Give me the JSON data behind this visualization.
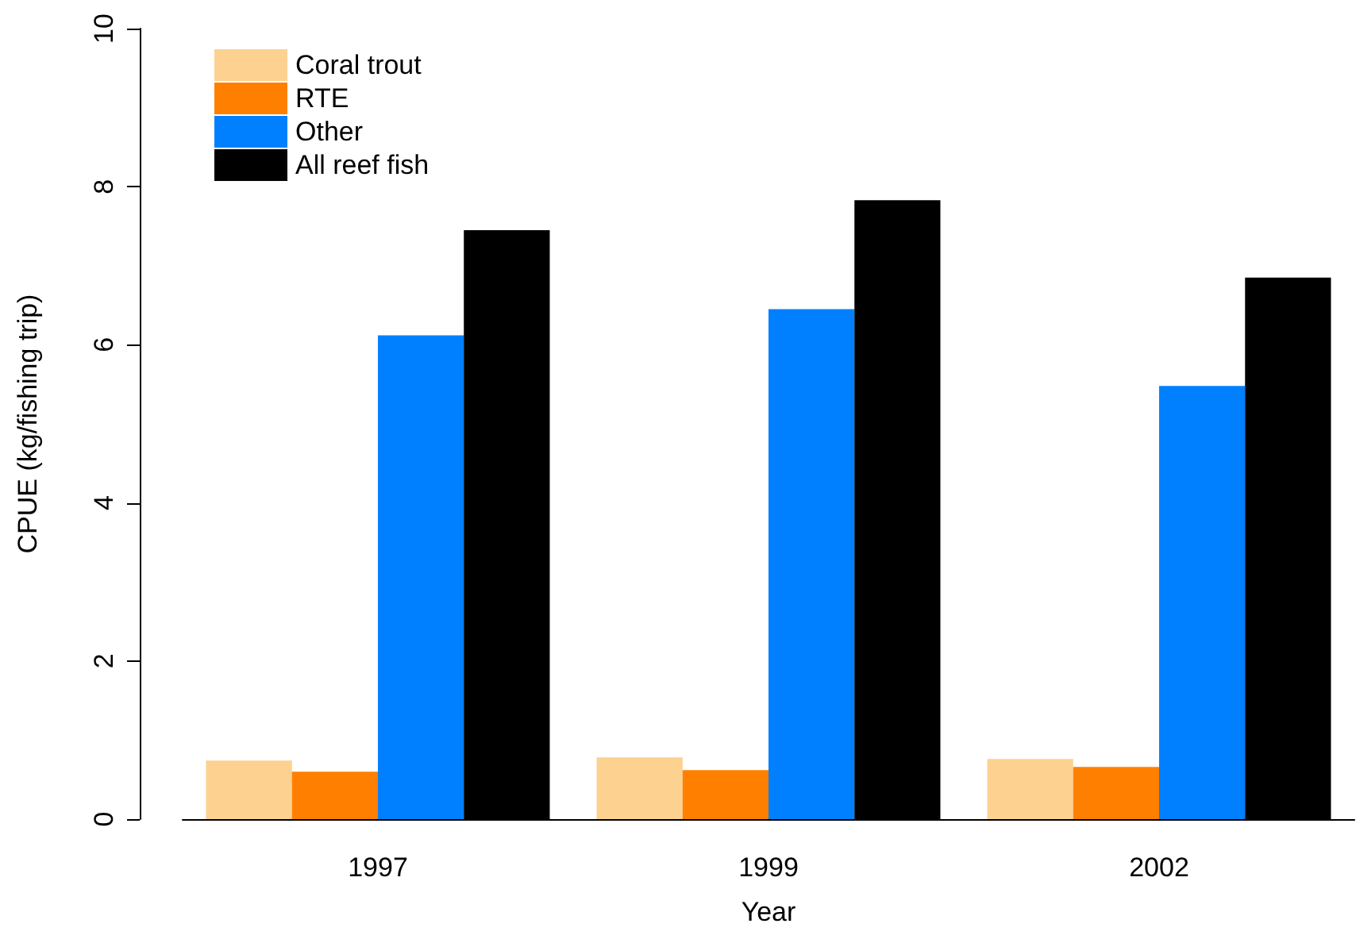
{
  "chart_data": {
    "type": "bar",
    "xlabel": "Year",
    "ylabel": "CPUE (kg/fishing trip)",
    "categories": [
      "1997",
      "1999",
      "2002"
    ],
    "series": [
      {
        "name": "Coral trout",
        "color": "#fdd190",
        "values": [
          0.74,
          0.78,
          0.76
        ]
      },
      {
        "name": "RTE",
        "color": "#ff8000",
        "values": [
          0.6,
          0.62,
          0.66
        ]
      },
      {
        "name": "Other",
        "color": "#0080ff",
        "values": [
          6.12,
          6.45,
          5.48
        ]
      },
      {
        "name": "All reef fish",
        "color": "#000000",
        "values": [
          7.45,
          7.83,
          6.85
        ]
      }
    ],
    "ylim": [
      0,
      10
    ],
    "yticks": [
      0,
      2,
      4,
      6,
      8,
      10
    ],
    "grid": false,
    "legend": "top left"
  }
}
